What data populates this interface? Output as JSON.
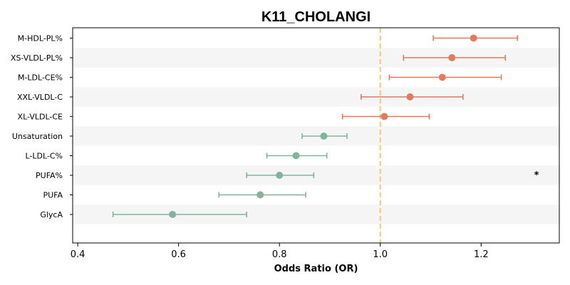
{
  "chart_data": {
    "type": "forest",
    "title": "K11_CHOLANGI",
    "xlabel": "Odds Ratio (OR)",
    "ylabel": "",
    "xlim": [
      0.39,
      1.355
    ],
    "xticks": [
      0.4,
      0.6,
      0.8,
      1.0,
      1.2
    ],
    "xtick_labels": [
      "0.4",
      "0.6",
      "0.8",
      "1.0",
      "1.2"
    ],
    "reference_line": 1.0,
    "reference_color": "#f5c98a",
    "colors": {
      "increase": "#e07b5f",
      "decrease": "#82b39b",
      "band": "#f5f5f5"
    },
    "rows": [
      {
        "label": "M-HDL-PL%",
        "or": 1.185,
        "low": 1.105,
        "high": 1.272,
        "direction": "increase",
        "annotation": ""
      },
      {
        "label": "XS-VLDL-PL%",
        "or": 1.142,
        "low": 1.046,
        "high": 1.248,
        "direction": "increase",
        "annotation": ""
      },
      {
        "label": "M-LDL-CE%",
        "or": 1.123,
        "low": 1.018,
        "high": 1.24,
        "direction": "increase",
        "annotation": ""
      },
      {
        "label": "XXL-VLDL-C",
        "or": 1.059,
        "low": 0.962,
        "high": 1.164,
        "direction": "increase",
        "annotation": ""
      },
      {
        "label": "XL-VLDL-CE",
        "or": 1.008,
        "low": 0.925,
        "high": 1.097,
        "direction": "increase",
        "annotation": ""
      },
      {
        "label": "Unsaturation",
        "or": 0.888,
        "low": 0.845,
        "high": 0.934,
        "direction": "decrease",
        "annotation": ""
      },
      {
        "label": "L-LDL-C%",
        "or": 0.833,
        "low": 0.775,
        "high": 0.894,
        "direction": "decrease",
        "annotation": ""
      },
      {
        "label": "PUFA%",
        "or": 0.8,
        "low": 0.735,
        "high": 0.868,
        "direction": "decrease",
        "annotation": "*"
      },
      {
        "label": "PUFA",
        "or": 0.762,
        "low": 0.68,
        "high": 0.852,
        "direction": "decrease",
        "annotation": ""
      },
      {
        "label": "GlycA",
        "or": 0.588,
        "low": 0.47,
        "high": 0.735,
        "direction": "decrease",
        "annotation": ""
      }
    ]
  }
}
